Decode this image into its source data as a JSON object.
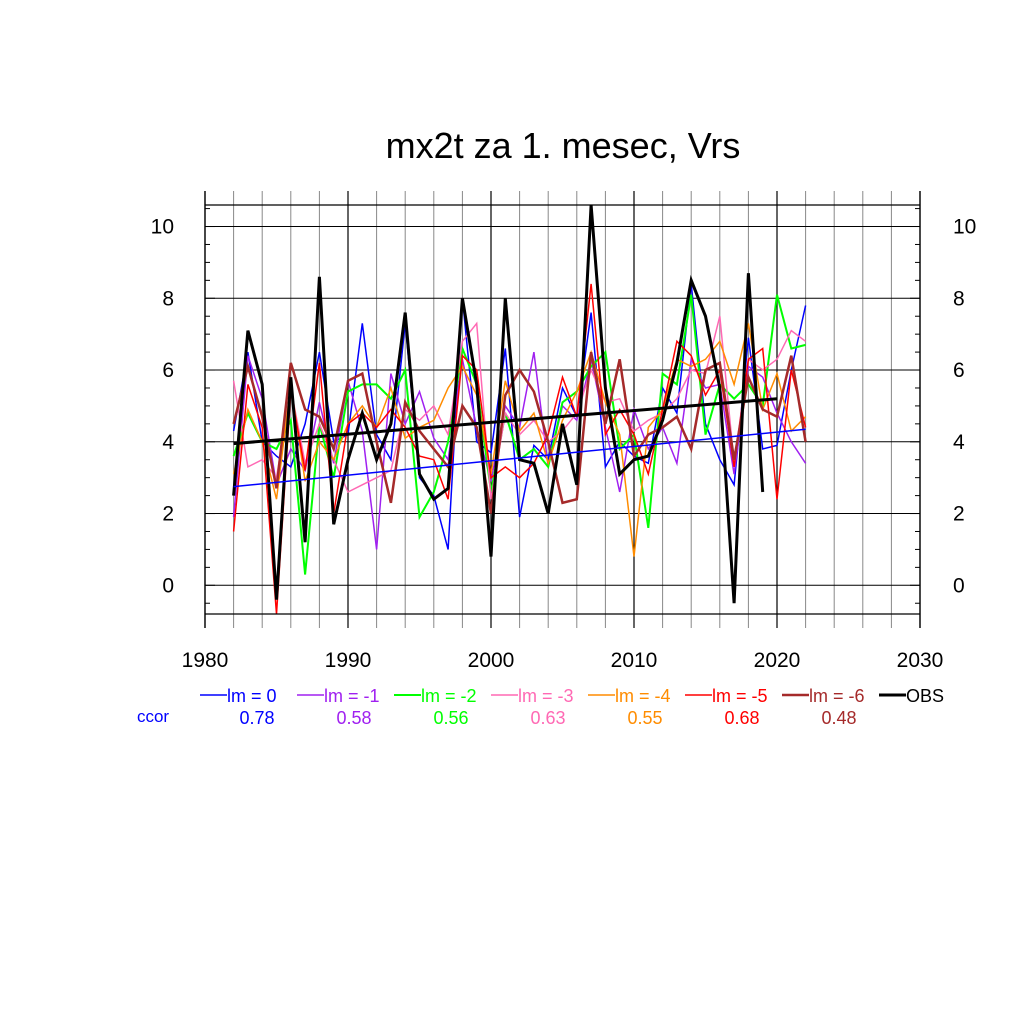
{
  "chart_data": {
    "type": "line",
    "title": "mx2t za 1. mesec, Vrs",
    "xlabel": "",
    "ylabel": "",
    "xlim": [
      1980,
      2030
    ],
    "ylim": [
      -0.8,
      10.6
    ],
    "xticks": [
      1980,
      1990,
      2000,
      2010,
      2020,
      2030
    ],
    "yticks": [
      0,
      2,
      4,
      6,
      8,
      10
    ],
    "grid": true,
    "legend_position": "bottom",
    "ccor_label": "ccor",
    "series": [
      {
        "name": "lm = 0",
        "color": "#0000ff",
        "ccor": "0.78",
        "width": 1.5,
        "x": [
          1982,
          1983,
          1984,
          1985,
          1986,
          1987,
          1988,
          1989,
          1990,
          1991,
          1992,
          1993,
          1994,
          1995,
          1996,
          1997,
          1998,
          1999,
          2000,
          2001,
          2002,
          2003,
          2004,
          2005,
          2006,
          2007,
          2008,
          2009,
          2010,
          2011,
          2012,
          2013,
          2014,
          2015,
          2016,
          2017,
          2018,
          2019,
          2020,
          2021,
          2022
        ],
        "y": [
          4.3,
          6.5,
          4.0,
          3.6,
          3.3,
          4.5,
          6.5,
          4.0,
          4.2,
          7.3,
          4.2,
          3.5,
          7.3,
          3.0,
          2.5,
          1.0,
          8.0,
          4.0,
          3.7,
          6.6,
          1.9,
          3.9,
          3.5,
          5.5,
          4.7,
          7.6,
          3.3,
          4.0,
          3.6,
          3.4,
          5.5,
          4.8,
          8.4,
          4.5,
          3.5,
          2.8,
          6.9,
          3.8,
          3.9,
          6.0,
          7.8
        ]
      },
      {
        "name": "lm = -1",
        "color": "#a020f0",
        "ccor": "0.58",
        "width": 1.5,
        "x": [
          1982,
          1983,
          1984,
          1985,
          1986,
          1987,
          1988,
          1989,
          1990,
          1991,
          1992,
          1993,
          1994,
          1995,
          1996,
          1997,
          1998,
          1999,
          2000,
          2001,
          2002,
          2003,
          2004,
          2005,
          2006,
          2007,
          2008,
          2009,
          2010,
          2011,
          2012,
          2013,
          2014,
          2015,
          2016,
          2017,
          2018,
          2019,
          2020,
          2021,
          2022
        ],
        "y": [
          1.9,
          6.4,
          5.2,
          2.8,
          3.8,
          3.2,
          5.1,
          3.4,
          5.7,
          4.3,
          1.0,
          5.9,
          4.5,
          5.4,
          4.1,
          3.5,
          6.3,
          4.4,
          2.9,
          5.0,
          4.4,
          6.5,
          3.3,
          5.0,
          4.6,
          6.3,
          4.4,
          2.6,
          4.9,
          3.8,
          4.4,
          3.4,
          6.3,
          5.5,
          5.6,
          3.1,
          6.1,
          5.8,
          4.8,
          4.0,
          3.4
        ]
      },
      {
        "name": "lm = -2",
        "color": "#00ff00",
        "ccor": "0.56",
        "width": 2.0,
        "x": [
          1982,
          1983,
          1984,
          1985,
          1986,
          1987,
          1988,
          1989,
          1990,
          1991,
          1992,
          1993,
          1994,
          1995,
          1996,
          1997,
          1998,
          1999,
          2000,
          2001,
          2002,
          2003,
          2004,
          2005,
          2006,
          2007,
          2008,
          2009,
          2010,
          2011,
          2012,
          2013,
          2014,
          2015,
          2016,
          2017,
          2018,
          2019,
          2020,
          2021,
          2022
        ],
        "y": [
          3.6,
          4.8,
          4.0,
          3.8,
          4.6,
          0.3,
          4.5,
          3.0,
          5.4,
          5.6,
          5.6,
          5.2,
          6.0,
          1.9,
          2.6,
          4.0,
          6.6,
          5.6,
          2.6,
          4.8,
          3.5,
          3.8,
          3.3,
          5.1,
          5.4,
          6.1,
          6.5,
          3.8,
          4.2,
          1.6,
          5.9,
          5.6,
          8.1,
          4.2,
          5.6,
          5.2,
          5.6,
          5.0,
          8.1,
          6.6,
          6.7
        ]
      },
      {
        "name": "lm = -3",
        "color": "#ff69b4",
        "ccor": "0.63",
        "width": 1.5,
        "x": [
          1982,
          1983,
          1984,
          1985,
          1986,
          1987,
          1988,
          1989,
          1990,
          1991,
          1992,
          1993,
          1994,
          1995,
          1996,
          1997,
          1998,
          1999,
          2000,
          2001,
          2002,
          2003,
          2004,
          2005,
          2006,
          2007,
          2008,
          2009,
          2010,
          2011,
          2012,
          2013,
          2014,
          2015,
          2016,
          2017,
          2018,
          2019,
          2020,
          2021,
          2022
        ],
        "y": [
          5.7,
          3.3,
          3.5,
          3.0,
          5.5,
          3.4,
          4.5,
          3.5,
          2.6,
          2.8,
          3.0,
          3.2,
          4.9,
          4.6,
          5.0,
          4.2,
          6.8,
          7.3,
          2.4,
          4.8,
          4.2,
          4.6,
          4.0,
          4.3,
          4.8,
          6.0,
          5.1,
          5.2,
          4.3,
          4.6,
          4.8,
          5.2,
          6.0,
          5.9,
          7.5,
          3.4,
          6.3,
          6.0,
          6.3,
          7.1,
          6.8
        ]
      },
      {
        "name": "lm = -4",
        "color": "#ff8c00",
        "ccor": "0.55",
        "width": 1.5,
        "x": [
          1982,
          1983,
          1984,
          1985,
          1986,
          1987,
          1988,
          1989,
          1990,
          1991,
          1992,
          1993,
          1994,
          1995,
          1996,
          1997,
          1998,
          1999,
          2000,
          2001,
          2002,
          2003,
          2004,
          2005,
          2006,
          2007,
          2008,
          2009,
          2010,
          2011,
          2012,
          2013,
          2014,
          2015,
          2016,
          2017,
          2018,
          2019,
          2020,
          2021,
          2022
        ],
        "y": [
          3.1,
          4.9,
          4.0,
          2.4,
          5.6,
          2.9,
          4.0,
          3.5,
          4.5,
          5.0,
          4.4,
          5.5,
          4.1,
          4.4,
          4.6,
          5.5,
          6.1,
          5.3,
          3.1,
          5.7,
          4.3,
          4.8,
          3.4,
          4.6,
          5.4,
          6.5,
          5.1,
          4.2,
          0.8,
          4.4,
          4.9,
          6.3,
          6.1,
          6.3,
          6.8,
          5.6,
          7.3,
          4.9,
          5.9,
          4.3,
          4.7
        ]
      },
      {
        "name": "lm = -5",
        "color": "#ff0000",
        "ccor": "0.68",
        "width": 1.5,
        "x": [
          1982,
          1983,
          1984,
          1985,
          1986,
          1987,
          1988,
          1989,
          1990,
          1991,
          1992,
          1993,
          1994,
          1995,
          1996,
          1997,
          1998,
          1999,
          2000,
          2001,
          2002,
          2003,
          2004,
          2005,
          2006,
          2007,
          2008,
          2009,
          2010,
          2011,
          2012,
          2013,
          2014,
          2015,
          2016,
          2017,
          2018,
          2019,
          2020,
          2021,
          2022
        ],
        "y": [
          1.5,
          5.6,
          4.4,
          -0.8,
          5.4,
          3.2,
          6.2,
          2.0,
          4.5,
          4.8,
          4.4,
          4.9,
          4.4,
          3.6,
          3.5,
          2.4,
          6.4,
          6.0,
          3.0,
          3.3,
          3.0,
          3.4,
          4.2,
          5.8,
          4.7,
          8.4,
          4.2,
          4.9,
          4.2,
          3.1,
          4.9,
          6.8,
          6.4,
          5.3,
          6.0,
          3.3,
          6.3,
          6.6,
          2.4,
          6.0,
          4.4
        ]
      },
      {
        "name": "lm = -6",
        "color": "#a52a2a",
        "ccor": "0.48",
        "width": 2.5,
        "x": [
          1982,
          1983,
          1984,
          1985,
          1986,
          1987,
          1988,
          1989,
          1990,
          1991,
          1992,
          1993,
          1994,
          1995,
          1996,
          1997,
          1998,
          1999,
          2000,
          2001,
          2002,
          2003,
          2004,
          2005,
          2006,
          2007,
          2008,
          2009,
          2010,
          2011,
          2012,
          2013,
          2014,
          2015,
          2016,
          2017,
          2018,
          2019,
          2020,
          2021,
          2022
        ],
        "y": [
          4.5,
          6.1,
          4.7,
          2.7,
          6.2,
          4.9,
          4.7,
          3.8,
          5.7,
          5.9,
          4.0,
          2.3,
          5.1,
          4.3,
          3.8,
          3.3,
          5.0,
          4.4,
          2.0,
          5.3,
          6.0,
          5.4,
          4.0,
          2.3,
          2.4,
          6.5,
          4.5,
          6.3,
          3.6,
          4.2,
          4.4,
          4.7,
          3.8,
          6.0,
          6.2,
          3.5,
          5.8,
          4.9,
          4.7,
          6.4,
          4.0
        ]
      },
      {
        "name": "OBS",
        "color": "#000000",
        "ccor": "",
        "width": 3.0,
        "x": [
          1982,
          1983,
          1984,
          1985,
          1986,
          1987,
          1988,
          1989,
          1990,
          1991,
          1992,
          1993,
          1994,
          1995,
          1996,
          1997,
          1998,
          1999,
          2000,
          2001,
          2002,
          2003,
          2004,
          2005,
          2006,
          2007,
          2008,
          2009,
          2010,
          2011,
          2012,
          2013,
          2014,
          2015,
          2016,
          2017,
          2018,
          2019
        ],
        "y": [
          2.5,
          7.1,
          5.6,
          -0.4,
          5.8,
          1.2,
          8.6,
          1.7,
          3.5,
          4.8,
          3.5,
          4.5,
          7.6,
          3.1,
          2.4,
          2.7,
          8.0,
          5.6,
          0.8,
          8.0,
          3.5,
          3.4,
          2.0,
          4.5,
          2.8,
          10.6,
          5.5,
          3.1,
          3.5,
          3.6,
          4.6,
          6.2,
          8.5,
          7.5,
          5.5,
          -0.5,
          8.7,
          2.6
        ]
      }
    ],
    "trend_lines": [
      {
        "name": "lm = 0",
        "color": "#0000ff",
        "width": 1.5,
        "x": [
          1982,
          2022
        ],
        "y": [
          2.75,
          4.35
        ]
      },
      {
        "name": "OBS",
        "color": "#000000",
        "width": 3.0,
        "x": [
          1982,
          2020
        ],
        "y": [
          3.95,
          5.2
        ]
      }
    ]
  }
}
